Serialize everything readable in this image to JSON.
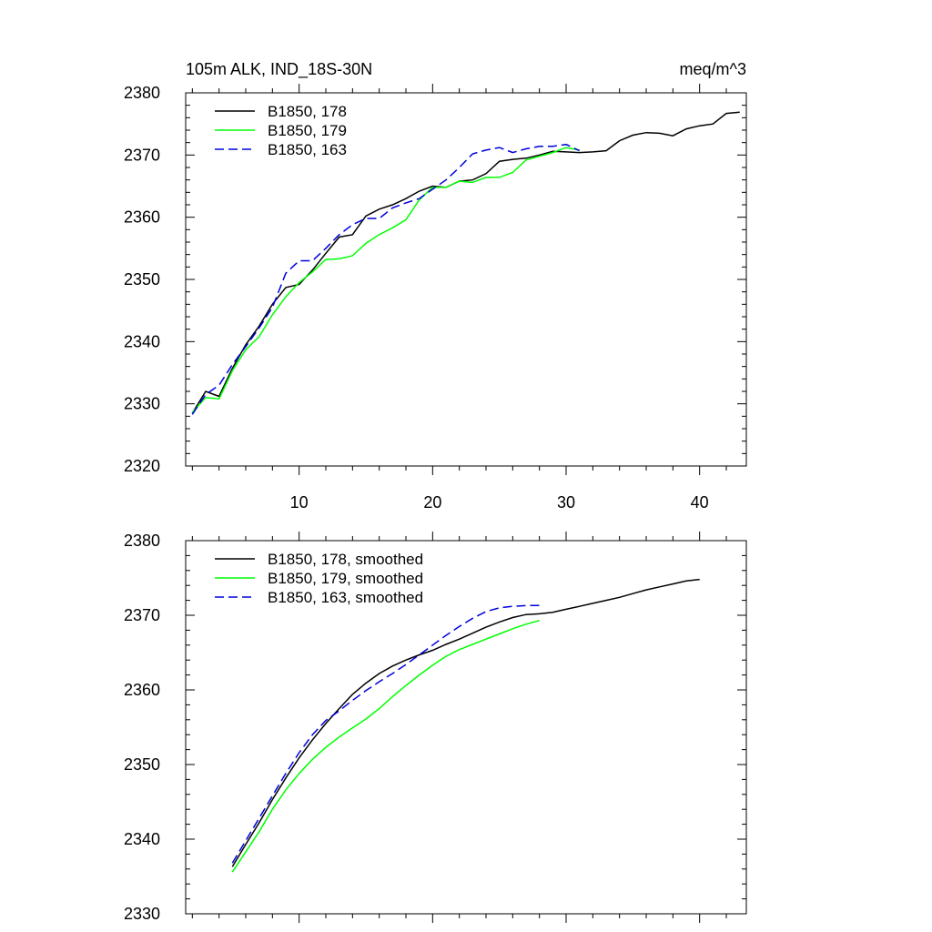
{
  "chart_data": [
    {
      "type": "line",
      "title": "105m ALK, IND_18S-30N",
      "units": "meq/m^3",
      "xlim": [
        1.5,
        43.5
      ],
      "ylim": [
        2320,
        2380
      ],
      "yticks": [
        2320,
        2330,
        2340,
        2350,
        2360,
        2370,
        2380
      ],
      "xticks": [
        10,
        20,
        30,
        40
      ],
      "legend_position": "top-left",
      "series": [
        {
          "name": "B1850, 178",
          "color": "#000000",
          "dash": "solid",
          "x": [
            2,
            3,
            4,
            5,
            6,
            7,
            8,
            9,
            10,
            11,
            12,
            13,
            14,
            15,
            16,
            17,
            18,
            19,
            20,
            21,
            22,
            23,
            24,
            25,
            26,
            27,
            28,
            29,
            30,
            31,
            32,
            33,
            34,
            35,
            36,
            37,
            38,
            39,
            40,
            41,
            42,
            43
          ],
          "y": [
            2328.5,
            2332,
            2331.2,
            2335.7,
            2339.5,
            2342.5,
            2346,
            2348.7,
            2349.2,
            2351.5,
            2354.2,
            2356.8,
            2357.2,
            2360.2,
            2361.3,
            2362,
            2363,
            2364.2,
            2365,
            2364.8,
            2365.8,
            2366,
            2367,
            2369,
            2369.3,
            2369.5,
            2370,
            2370.6,
            2370.5,
            2370.4,
            2370.5,
            2370.7,
            2372.3,
            2373.2,
            2373.6,
            2373.5,
            2373.1,
            2374.2,
            2374.7,
            2375,
            2376.7,
            2376.9
          ]
        },
        {
          "name": "B1850, 179",
          "color": "#00ff00",
          "dash": "solid",
          "x": [
            2,
            3,
            4,
            5,
            6,
            7,
            8,
            9,
            10,
            11,
            12,
            13,
            14,
            15,
            16,
            17,
            18,
            19,
            20,
            21,
            22,
            23,
            24,
            25,
            26,
            27,
            28,
            29,
            30,
            31
          ],
          "y": [
            2328.6,
            2331,
            2330.8,
            2335.3,
            2338.7,
            2340.8,
            2344.3,
            2347.2,
            2349.5,
            2351.2,
            2353.2,
            2353.3,
            2353.8,
            2355.8,
            2357.2,
            2358.3,
            2359.6,
            2362.8,
            2364.8,
            2364.8,
            2365.8,
            2365.6,
            2366.4,
            2366.4,
            2367.2,
            2369.2,
            2369.8,
            2370.4,
            2371.2,
            2370.8
          ]
        },
        {
          "name": "B1850, 163",
          "color": "#0000dd",
          "dash": "dashed",
          "x": [
            2,
            3,
            4,
            5,
            6,
            7,
            8,
            9,
            10,
            11,
            12,
            13,
            14,
            15,
            16,
            17,
            18,
            19,
            20,
            21,
            22,
            23,
            24,
            25,
            26,
            27,
            28,
            29,
            30,
            31
          ],
          "y": [
            2328.3,
            2331.5,
            2333,
            2336.3,
            2339.2,
            2342.2,
            2345.5,
            2351,
            2353,
            2353,
            2355,
            2357.2,
            2358.8,
            2359.8,
            2359.8,
            2361.5,
            2362.3,
            2363,
            2364.5,
            2366,
            2368,
            2370.2,
            2370.8,
            2371.2,
            2370.4,
            2371,
            2371.4,
            2371.4,
            2371.7,
            2370.7
          ]
        }
      ]
    },
    {
      "type": "line",
      "title": "",
      "xlim": [
        1.5,
        43.5
      ],
      "ylim": [
        2330,
        2380
      ],
      "yticks": [
        2330,
        2340,
        2350,
        2360,
        2370,
        2380
      ],
      "xticks": [
        10,
        20,
        30,
        40
      ],
      "legend_position": "top-left",
      "series": [
        {
          "name": "B1850, 178, smoothed",
          "color": "#000000",
          "dash": "solid",
          "x": [
            5,
            6,
            7,
            8,
            9,
            10,
            11,
            12,
            13,
            14,
            15,
            16,
            17,
            18,
            19,
            20,
            21,
            22,
            23,
            24,
            25,
            26,
            27,
            28,
            29,
            30,
            31,
            32,
            33,
            34,
            35,
            36,
            37,
            38,
            39,
            40
          ],
          "y": [
            2336.3,
            2339.3,
            2342.2,
            2345.3,
            2348.2,
            2350.9,
            2353.3,
            2355.5,
            2357.5,
            2359.4,
            2360.9,
            2362.2,
            2363.2,
            2364,
            2364.7,
            2365.3,
            2366.1,
            2366.8,
            2367.6,
            2368.4,
            2369.1,
            2369.7,
            2370.1,
            2370.2,
            2370.4,
            2370.8,
            2371.2,
            2371.6,
            2372,
            2372.4,
            2372.9,
            2373.4,
            2373.8,
            2374.2,
            2374.6,
            2374.8
          ]
        },
        {
          "name": "B1850, 179, smoothed",
          "color": "#00ff00",
          "dash": "solid",
          "x": [
            5,
            6,
            7,
            8,
            9,
            10,
            11,
            12,
            13,
            14,
            15,
            16,
            17,
            18,
            19,
            20,
            21,
            22,
            23,
            24,
            25,
            26,
            27,
            28
          ],
          "y": [
            2335.6,
            2338.3,
            2341,
            2344,
            2346.6,
            2348.8,
            2350.7,
            2352.3,
            2353.7,
            2354.9,
            2356.1,
            2357.5,
            2359.1,
            2360.6,
            2362,
            2363.3,
            2364.5,
            2365.4,
            2366.1,
            2366.8,
            2367.5,
            2368.2,
            2368.8,
            2369.3
          ]
        },
        {
          "name": "B1850, 163, smoothed",
          "color": "#0000dd",
          "dash": "dashed",
          "x": [
            5,
            6,
            7,
            8,
            9,
            10,
            11,
            12,
            13,
            14,
            15,
            16,
            17,
            18,
            19,
            20,
            21,
            22,
            23,
            24,
            25,
            26,
            27,
            28
          ],
          "y": [
            2336.8,
            2339.8,
            2342.8,
            2345.8,
            2348.8,
            2351.6,
            2354,
            2355.9,
            2357.2,
            2358.6,
            2359.9,
            2361.1,
            2362.2,
            2363.4,
            2364.7,
            2366,
            2367.3,
            2368.5,
            2369.6,
            2370.5,
            2371,
            2371.2,
            2371.3,
            2371.3
          ]
        }
      ]
    }
  ]
}
